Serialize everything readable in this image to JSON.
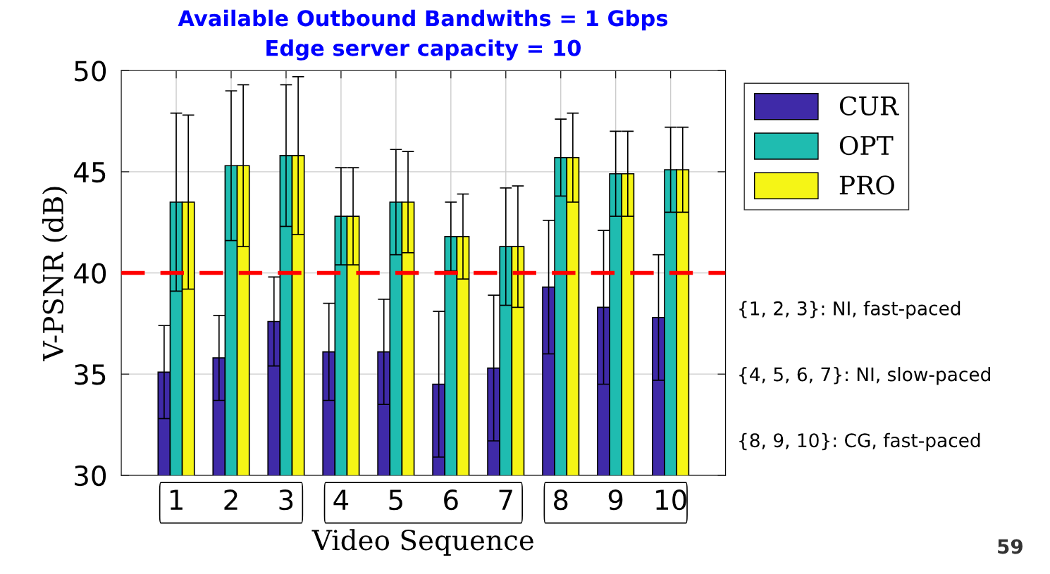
{
  "chart_data": {
    "type": "bar",
    "title": "Available Outbound Bandwiths = 1 Gbps",
    "subtitle": "Edge server capacity = 10",
    "xlabel": "Video Sequence",
    "ylabel": "V-PSNR (dB)",
    "categories": [
      "1",
      "2",
      "3",
      "4",
      "5",
      "6",
      "7",
      "8",
      "9",
      "10"
    ],
    "series": [
      {
        "name": "CUR",
        "color": "#3f2aa8",
        "values": [
          35.1,
          35.8,
          37.6,
          36.1,
          36.1,
          34.5,
          35.3,
          39.3,
          38.3,
          37.8
        ],
        "errors": [
          2.3,
          2.1,
          2.2,
          2.4,
          2.6,
          3.6,
          3.6,
          3.3,
          3.8,
          3.1
        ]
      },
      {
        "name": "OPT",
        "color": "#1fbcb0",
        "values": [
          43.5,
          45.3,
          45.8,
          42.8,
          43.5,
          41.8,
          41.3,
          45.7,
          44.9,
          45.1
        ],
        "errors": [
          4.4,
          3.7,
          3.5,
          2.4,
          2.6,
          1.7,
          2.9,
          1.9,
          2.1,
          2.1
        ]
      },
      {
        "name": "PRO",
        "color": "#f5f516",
        "values": [
          43.5,
          45.3,
          45.8,
          42.8,
          43.5,
          41.8,
          41.3,
          45.7,
          44.9,
          45.1
        ],
        "errors": [
          4.3,
          4.0,
          3.9,
          2.4,
          2.5,
          2.1,
          3.0,
          2.2,
          2.1,
          2.1
        ]
      }
    ],
    "ylim": [
      30,
      50
    ],
    "yticks": [
      30,
      35,
      40,
      45,
      50
    ],
    "grid": true,
    "legend": "right",
    "ref_lines": [
      {
        "axis": "y",
        "value": 40,
        "color": "#ff0000",
        "line_style": "dashed"
      }
    ],
    "annotations": [
      "{1, 2, 3}: NI, fast-paced",
      "{4, 5, 6, 7}: NI, slow-paced",
      "{8, 9, 10}: CG, fast-paced",
      "59"
    ]
  }
}
